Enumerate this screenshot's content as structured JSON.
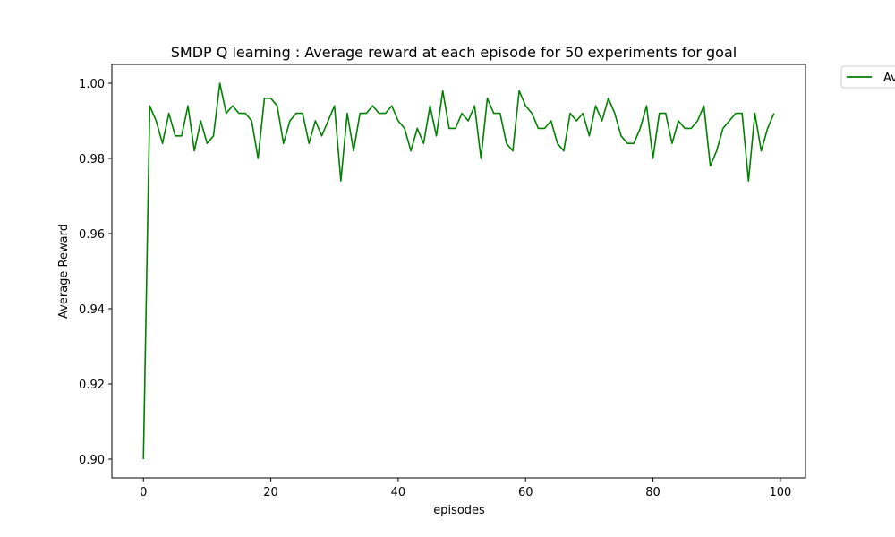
{
  "chart_data": {
    "type": "line",
    "title": "SMDP Q learning : Average reward at each episode for 50 experiments for goal",
    "xlabel": "episodes",
    "ylabel": "Average Reward",
    "xlim": [
      -4.95,
      103.95
    ],
    "ylim": [
      0.895,
      1.005
    ],
    "xticks": [
      0,
      20,
      40,
      60,
      80,
      100
    ],
    "xtick_labels": [
      "0",
      "20",
      "40",
      "60",
      "80",
      "100"
    ],
    "yticks": [
      0.9,
      0.92,
      0.94,
      0.96,
      0.98,
      1.0
    ],
    "ytick_labels": [
      "0.90",
      "0.92",
      "0.94",
      "0.96",
      "0.98",
      "1.00"
    ],
    "grid": false,
    "legend_position": "outside-top-right",
    "series": [
      {
        "name": "Av",
        "color": "#008000",
        "values": [
          0.9,
          0.994,
          0.99,
          0.984,
          0.992,
          0.986,
          0.986,
          0.994,
          0.982,
          0.99,
          0.984,
          0.986,
          1.0,
          0.992,
          0.994,
          0.992,
          0.992,
          0.99,
          0.98,
          0.996,
          0.996,
          0.994,
          0.984,
          0.99,
          0.992,
          0.992,
          0.984,
          0.99,
          0.986,
          0.99,
          0.994,
          0.974,
          0.992,
          0.982,
          0.992,
          0.992,
          0.994,
          0.992,
          0.992,
          0.994,
          0.99,
          0.988,
          0.982,
          0.988,
          0.984,
          0.994,
          0.986,
          0.998,
          0.988,
          0.988,
          0.992,
          0.99,
          0.994,
          0.98,
          0.996,
          0.992,
          0.992,
          0.984,
          0.982,
          0.998,
          0.994,
          0.992,
          0.988,
          0.988,
          0.99,
          0.984,
          0.982,
          0.992,
          0.99,
          0.992,
          0.986,
          0.994,
          0.99,
          0.996,
          0.992,
          0.986,
          0.984,
          0.984,
          0.988,
          0.994,
          0.98,
          0.992,
          0.992,
          0.984,
          0.99,
          0.988,
          0.988,
          0.99,
          0.994,
          0.978,
          0.982,
          0.988,
          0.99,
          0.992,
          0.992,
          0.974,
          0.992,
          0.982,
          0.988,
          0.992
        ]
      }
    ]
  }
}
